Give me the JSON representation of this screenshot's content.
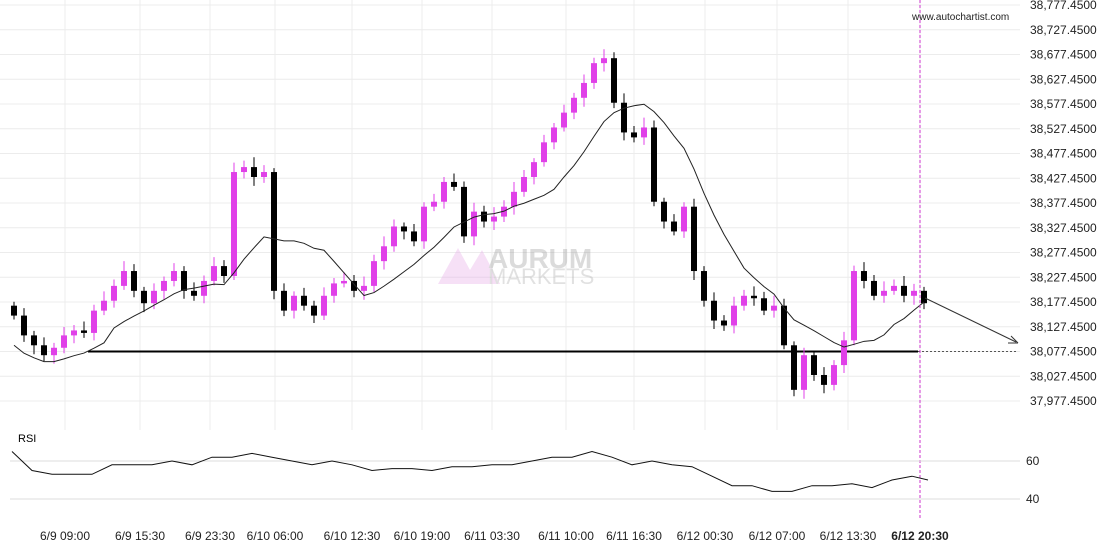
{
  "watermark": "www.autochartist.com",
  "brand_watermark": {
    "line1": "AURUM",
    "line2": "MARKETS"
  },
  "colors": {
    "bull": "#e040e8",
    "bear": "#000000",
    "ma": "#222222",
    "marker": "#cc33cc",
    "grid": "#ececec"
  },
  "chart_data": [
    {
      "type": "candlestick",
      "ylim": [
        37977.45,
        38777.45
      ],
      "y_ticks": [
        "38,777.4500",
        "38,727.4500",
        "38,677.4500",
        "38,627.4500",
        "38,577.4500",
        "38,527.4500",
        "38,477.4500",
        "38,427.4500",
        "38,377.4500",
        "38,327.4500",
        "38,277.4500",
        "38,227.4500",
        "38,177.4500",
        "38,127.4500",
        "38,077.4500",
        "38,027.4500",
        "37,977.4500"
      ],
      "x_ticks": [
        "6/9 09:00",
        "6/9 15:30",
        "6/9 23:30",
        "6/10 06:00",
        "6/10 12:30",
        "6/10 19:00",
        "6/11 03:30",
        "6/11 10:00",
        "6/11 16:30",
        "6/12 00:30",
        "6/12 07:00",
        "6/12 13:30",
        "6/12 20:30"
      ],
      "closes": [
        38150,
        38110,
        38090,
        38070,
        38085,
        38110,
        38120,
        38115,
        38160,
        38180,
        38210,
        38240,
        38200,
        38175,
        38200,
        38220,
        38240,
        38200,
        38190,
        38220,
        38250,
        38230,
        38440,
        38450,
        38430,
        38440,
        38200,
        38160,
        38190,
        38170,
        38150,
        38190,
        38215,
        38220,
        38200,
        38210,
        38260,
        38290,
        38330,
        38320,
        38300,
        38370,
        38380,
        38420,
        38410,
        38310,
        38360,
        38340,
        38350,
        38370,
        38400,
        38430,
        38460,
        38500,
        38530,
        38560,
        38590,
        38620,
        38660,
        38670,
        38580,
        38520,
        38510,
        38530,
        38380,
        38340,
        38320,
        38370,
        38240,
        38180,
        38140,
        38130,
        38170,
        38190,
        38185,
        38160,
        38170,
        38090,
        38000,
        38070,
        38030,
        38010,
        38050,
        38100,
        38240,
        38220,
        38190,
        38200,
        38210,
        38190,
        38200,
        38175
      ],
      "support_level": 38077.45,
      "moving_average": true
    },
    {
      "type": "line",
      "title": "RSI",
      "ylim": [
        30,
        70
      ],
      "y_ticks": [
        "60",
        "40"
      ],
      "values": [
        65,
        55,
        53,
        53,
        53,
        58,
        58,
        58,
        60,
        58,
        62,
        62,
        64,
        62,
        60,
        58,
        60,
        58,
        55,
        56,
        56,
        55,
        57,
        57,
        58,
        58,
        60,
        62,
        62,
        65,
        62,
        58,
        60,
        58,
        57,
        52,
        47,
        47,
        44,
        44,
        47,
        47,
        48,
        46,
        50,
        52,
        50
      ]
    }
  ]
}
